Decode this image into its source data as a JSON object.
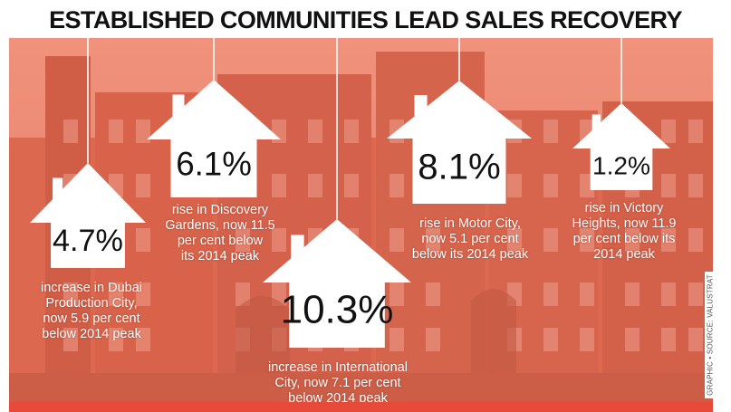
{
  "title": "ESTABLISHED COMMUNITIES LEAD SALES RECOVERY",
  "credit": "GRAPHIC • SOURCE: VALUSTRAT",
  "colors": {
    "overlay": "#e8503c",
    "bar": "#e84a3a",
    "house": "#ffffff",
    "text": "#111111"
  },
  "chart_data": {
    "type": "bar",
    "items": [
      {
        "value": 4.7,
        "value_label": "4.7%",
        "lines": [
          "increase in Dubai",
          "Production City,",
          "now 5.9 per cent",
          "below 2014 peak"
        ]
      },
      {
        "value": 6.1,
        "value_label": "6.1%",
        "lines": [
          "rise in Discovery",
          "Gardens, now 11.5",
          "per cent below",
          "its 2014 peak"
        ]
      },
      {
        "value": 10.3,
        "value_label": "10.3%",
        "lines": [
          "increase in International",
          "City, now 7.1 per cent",
          "below 2014 peak"
        ]
      },
      {
        "value": 8.1,
        "value_label": "8.1%",
        "lines": [
          "rise in Motor City,",
          "now 5.1 per cent",
          "below its 2014 peak"
        ]
      },
      {
        "value": 1.2,
        "value_label": "1.2%",
        "lines": [
          "rise in Victory",
          "Heights, now 11.9",
          "per cent below its",
          "2014 peak"
        ]
      }
    ]
  }
}
